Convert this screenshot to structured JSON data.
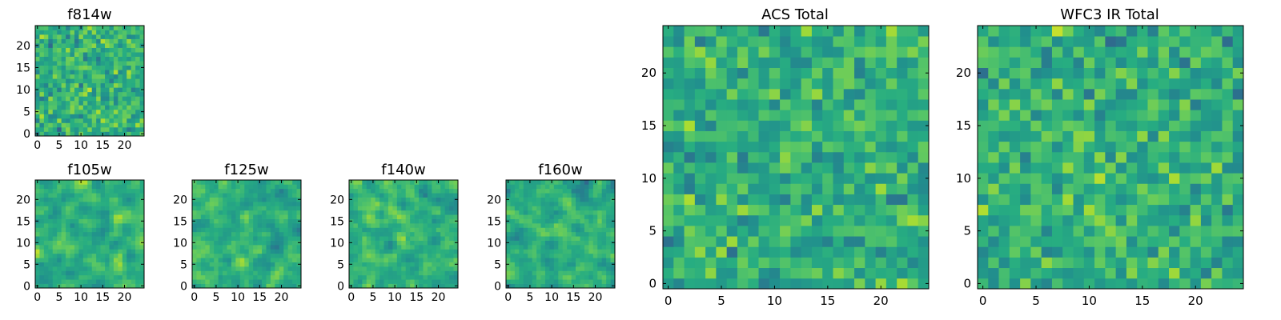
{
  "figure": {
    "description_free": true
  },
  "chart_data": [
    {
      "type": "heatmap",
      "title": "f814w",
      "grid_size": 25,
      "pixel_pattern": "fine-noise",
      "seed": 11,
      "xticks": [
        "0",
        "5",
        "10",
        "15",
        "20"
      ],
      "yticks": [
        "0",
        "5",
        "10",
        "15",
        "20"
      ],
      "xlim": [
        0,
        25
      ],
      "ylim": [
        0,
        25
      ],
      "colormap": "viridis"
    },
    {
      "type": "heatmap",
      "title": "f105w",
      "grid_size": 25,
      "pixel_pattern": "smooth-noise",
      "seed": 23,
      "xticks": [
        "0",
        "5",
        "10",
        "15",
        "20"
      ],
      "yticks": [
        "0",
        "5",
        "10",
        "15",
        "20"
      ],
      "xlim": [
        0,
        25
      ],
      "ylim": [
        0,
        25
      ],
      "colormap": "viridis"
    },
    {
      "type": "heatmap",
      "title": "f125w",
      "grid_size": 25,
      "pixel_pattern": "smooth-noise",
      "seed": 37,
      "xticks": [
        "0",
        "5",
        "10",
        "15",
        "20"
      ],
      "yticks": [
        "0",
        "5",
        "10",
        "15",
        "20"
      ],
      "xlim": [
        0,
        25
      ],
      "ylim": [
        0,
        25
      ],
      "colormap": "viridis"
    },
    {
      "type": "heatmap",
      "title": "f140w",
      "grid_size": 25,
      "pixel_pattern": "smooth-noise",
      "seed": 41,
      "xticks": [
        "0",
        "5",
        "10",
        "15",
        "20"
      ],
      "yticks": [
        "0",
        "5",
        "10",
        "15",
        "20"
      ],
      "xlim": [
        0,
        25
      ],
      "ylim": [
        0,
        25
      ],
      "colormap": "viridis"
    },
    {
      "type": "heatmap",
      "title": "f160w",
      "grid_size": 25,
      "pixel_pattern": "smooth-noise",
      "seed": 53,
      "xticks": [
        "0",
        "5",
        "10",
        "15",
        "20"
      ],
      "yticks": [
        "0",
        "5",
        "10",
        "15",
        "20"
      ],
      "xlim": [
        0,
        25
      ],
      "ylim": [
        0,
        25
      ],
      "colormap": "viridis"
    },
    {
      "type": "heatmap",
      "title": "ACS Total",
      "grid_size": 25,
      "pixel_pattern": "coarse-noise",
      "seed": 67,
      "xticks": [
        "0",
        "5",
        "10",
        "15",
        "20"
      ],
      "yticks": [
        "0",
        "5",
        "10",
        "15",
        "20"
      ],
      "xlim": [
        0,
        25
      ],
      "ylim": [
        0,
        25
      ],
      "colormap": "viridis"
    },
    {
      "type": "heatmap",
      "title": "WFC3 IR Total",
      "grid_size": 25,
      "pixel_pattern": "coarse-noise",
      "seed": 79,
      "xticks": [
        "0",
        "5",
        "10",
        "15",
        "20"
      ],
      "yticks": [
        "0",
        "5",
        "10",
        "15",
        "20"
      ],
      "xlim": [
        0,
        25
      ],
      "ylim": [
        0,
        25
      ],
      "colormap": "viridis"
    }
  ]
}
